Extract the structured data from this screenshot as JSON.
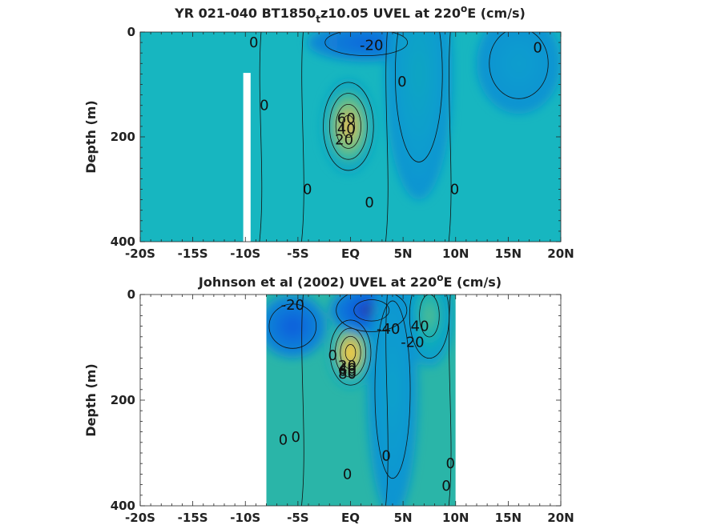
{
  "chart_data": [
    {
      "type": "contour",
      "title_prefix": "YR 021-040 BT1850",
      "title_sub": "t",
      "title_middle": "z10.05 UVEL at 220",
      "title_sup": "o",
      "title_suffix": "E (cm/s)",
      "xlabel": "",
      "ylabel": "Depth (m)",
      "xlim": [
        -20,
        20
      ],
      "ylim": [
        400,
        0
      ],
      "x_ticks": [
        -20,
        -15,
        -10,
        -5,
        0,
        5,
        10,
        15,
        20
      ],
      "x_tick_labels": [
        "-20S",
        "-15S",
        "-10S",
        "-5S",
        "EQ",
        "5N",
        "10N",
        "15N",
        "20N"
      ],
      "y_ticks": [
        0,
        200,
        400
      ],
      "y_tick_labels": [
        "0",
        "200",
        "400"
      ],
      "data_extent_x": [
        -20,
        20
      ],
      "gap_x": [
        -10.2,
        -9.5
      ],
      "gap_depth": [
        78,
        400
      ],
      "background_color": "#17b6c0",
      "features": [
        {
          "kind": "max",
          "x": -0.2,
          "depth": 180,
          "value": 80,
          "width": 1.6,
          "thickness": 75
        },
        {
          "kind": "min",
          "x": 1.5,
          "depth": 20,
          "value": -25,
          "width": 3.5,
          "thickness": 30
        },
        {
          "kind": "max",
          "x": 6.5,
          "depth": 80,
          "value": 15,
          "width": 2.0,
          "thickness": 200
        },
        {
          "kind": "max",
          "x": 16,
          "depth": 60,
          "value": 8,
          "width": 2.5,
          "thickness": 80
        }
      ],
      "contour_labels": [
        {
          "text": "-20",
          "x": 2.0,
          "depth": 25
        },
        {
          "text": "0",
          "x": -9.2,
          "depth": 20
        },
        {
          "text": "0",
          "x": -8.2,
          "depth": 140
        },
        {
          "text": "0",
          "x": 4.9,
          "depth": 95
        },
        {
          "text": "0",
          "x": -4.1,
          "depth": 300
        },
        {
          "text": "0",
          "x": 1.8,
          "depth": 325
        },
        {
          "text": "0",
          "x": 9.9,
          "depth": 300
        },
        {
          "text": "0",
          "x": 17.8,
          "depth": 30
        },
        {
          "text": "20",
          "x": -0.6,
          "depth": 205
        },
        {
          "text": "40",
          "x": -0.4,
          "depth": 185
        },
        {
          "text": "60",
          "x": -0.4,
          "depth": 165
        }
      ]
    },
    {
      "type": "contour",
      "title_prefix": "Johnson et al (2002) UVEL at 220",
      "title_sup": "o",
      "title_suffix": "E (cm/s)",
      "xlabel": "",
      "ylabel": "Depth (m)",
      "xlim": [
        -20,
        20
      ],
      "ylim": [
        400,
        0
      ],
      "x_ticks": [
        -20,
        -15,
        -10,
        -5,
        0,
        5,
        10,
        15,
        20
      ],
      "x_tick_labels": [
        "-20S",
        "-15S",
        "-10S",
        "-5S",
        "EQ",
        "5N",
        "10N",
        "15N",
        "20N"
      ],
      "y_ticks": [
        0,
        200,
        400
      ],
      "y_tick_labels": [
        "0",
        "200",
        "400"
      ],
      "data_extent_x": [
        -8,
        10
      ],
      "background_color": "#2ab5a8",
      "features": [
        {
          "kind": "max",
          "x": 0.0,
          "depth": 110,
          "value": 95,
          "width": 1.3,
          "thickness": 55
        },
        {
          "kind": "min",
          "x": 2.0,
          "depth": 30,
          "value": -45,
          "width": 2.5,
          "thickness": 40
        },
        {
          "kind": "min",
          "x": -5.5,
          "depth": 60,
          "value": -30,
          "width": 2.0,
          "thickness": 50
        },
        {
          "kind": "max",
          "x": 7.5,
          "depth": 40,
          "value": 40,
          "width": 1.4,
          "thickness": 80
        },
        {
          "kind": "max",
          "x": 4.0,
          "depth": 180,
          "value": 10,
          "width": 1.5,
          "thickness": 200
        }
      ],
      "contour_labels": [
        {
          "text": "-20",
          "x": -5.5,
          "depth": 20
        },
        {
          "text": "-40",
          "x": 3.6,
          "depth": 65
        },
        {
          "text": "-20",
          "x": 5.9,
          "depth": 90
        },
        {
          "text": "40",
          "x": 6.6,
          "depth": 60
        },
        {
          "text": "0",
          "x": -1.7,
          "depth": 115
        },
        {
          "text": "20",
          "x": -0.3,
          "depth": 135
        },
        {
          "text": "40",
          "x": -0.3,
          "depth": 140
        },
        {
          "text": "60",
          "x": -0.3,
          "depth": 145
        },
        {
          "text": "80",
          "x": -0.3,
          "depth": 150
        },
        {
          "text": "0",
          "x": -6.4,
          "depth": 275
        },
        {
          "text": "0",
          "x": -5.2,
          "depth": 270
        },
        {
          "text": "0",
          "x": 3.4,
          "depth": 305
        },
        {
          "text": "0",
          "x": -0.3,
          "depth": 340
        },
        {
          "text": "0",
          "x": 9.5,
          "depth": 320
        },
        {
          "text": "0",
          "x": 9.1,
          "depth": 362
        }
      ]
    }
  ]
}
